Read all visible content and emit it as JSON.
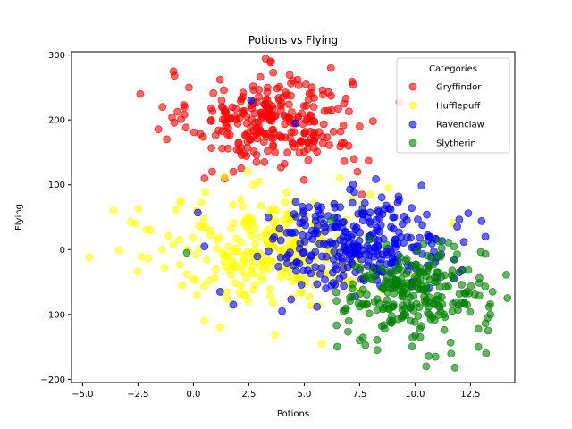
{
  "chart_data": {
    "type": "scatter",
    "title": "Potions vs Flying",
    "xlabel": "Potions",
    "ylabel": "Flying",
    "xlim": [
      -5.5,
      14.5
    ],
    "ylim": [
      -205,
      305
    ],
    "xticks": [
      -5.0,
      -2.5,
      0.0,
      2.5,
      5.0,
      7.5,
      10.0,
      12.5
    ],
    "xtick_labels": [
      "−5.0",
      "−2.5",
      "0.0",
      "2.5",
      "5.0",
      "7.5",
      "10.0",
      "12.5"
    ],
    "yticks": [
      -200,
      -100,
      0,
      100,
      200,
      300
    ],
    "ytick_labels": [
      "−200",
      "−100",
      "0",
      "100",
      "200",
      "300"
    ],
    "grid": false,
    "legend": {
      "title": "Categories",
      "placement": "top-right"
    },
    "series": [
      {
        "name": "Gryffindor",
        "color": "#ff0000",
        "center": [
          3.5,
          200
        ],
        "spread": [
          1.8,
          35
        ],
        "count": 260,
        "points": [
          [
            -2.4,
            240
          ],
          [
            -1.4,
            220
          ],
          [
            -0.9,
            275
          ],
          [
            -0.2,
            250
          ],
          [
            0.5,
            110
          ],
          [
            1.8,
            120
          ],
          [
            6.8,
            225
          ],
          [
            7.0,
            160
          ],
          [
            7.9,
            137
          ],
          [
            7.4,
            120
          ],
          [
            7.6,
            85
          ],
          [
            7.5,
            190
          ],
          [
            8.1,
            198
          ],
          [
            3.2,
            135
          ],
          [
            3.6,
            273
          ],
          [
            6.2,
            280
          ],
          [
            4.7,
            262
          ],
          [
            1.2,
            262
          ],
          [
            -1.2,
            170
          ]
        ]
      },
      {
        "name": "Hufflepuff",
        "color": "#ffff00",
        "center": [
          4.2,
          0
        ],
        "spread": [
          2.6,
          40
        ],
        "count": 320,
        "points": [
          [
            -4.7,
            -12
          ],
          [
            -3.6,
            60
          ],
          [
            -2.6,
            40
          ],
          [
            -1.4,
            0
          ],
          [
            -1.3,
            -28
          ],
          [
            -0.9,
            8
          ],
          [
            -0.5,
            -55
          ],
          [
            0.5,
            -110
          ],
          [
            1.2,
            -120
          ],
          [
            5.8,
            -145
          ],
          [
            8.8,
            95
          ],
          [
            8.0,
            85
          ],
          [
            6.6,
            110
          ],
          [
            6.3,
            70
          ],
          [
            2.7,
            100
          ],
          [
            -0.8,
            60
          ]
        ]
      },
      {
        "name": "Ravenclaw",
        "color": "#0000ff",
        "center": [
          7.5,
          10
        ],
        "spread": [
          2.0,
          35
        ],
        "count": 300,
        "points": [
          [
            0.2,
            57
          ],
          [
            0.5,
            5
          ],
          [
            2.6,
            230
          ],
          [
            4.6,
            195
          ],
          [
            13.0,
            44
          ],
          [
            12.2,
            12
          ],
          [
            12.4,
            56
          ],
          [
            12.0,
            -35
          ],
          [
            1.2,
            -65
          ],
          [
            1.8,
            -85
          ],
          [
            4.0,
            -95
          ]
        ]
      },
      {
        "name": "Slytherin",
        "color": "#008000",
        "center": [
          10.0,
          -70
        ],
        "spread": [
          1.6,
          35
        ],
        "count": 250,
        "points": [
          [
            -0.3,
            -5
          ],
          [
            13.5,
            -65
          ],
          [
            13.3,
            -125
          ],
          [
            13.2,
            -160
          ],
          [
            11.8,
            -182
          ],
          [
            10.5,
            -180
          ],
          [
            8.3,
            -155
          ],
          [
            7.5,
            -140
          ],
          [
            13.4,
            -100
          ],
          [
            6.2,
            45
          ]
        ]
      }
    ]
  }
}
